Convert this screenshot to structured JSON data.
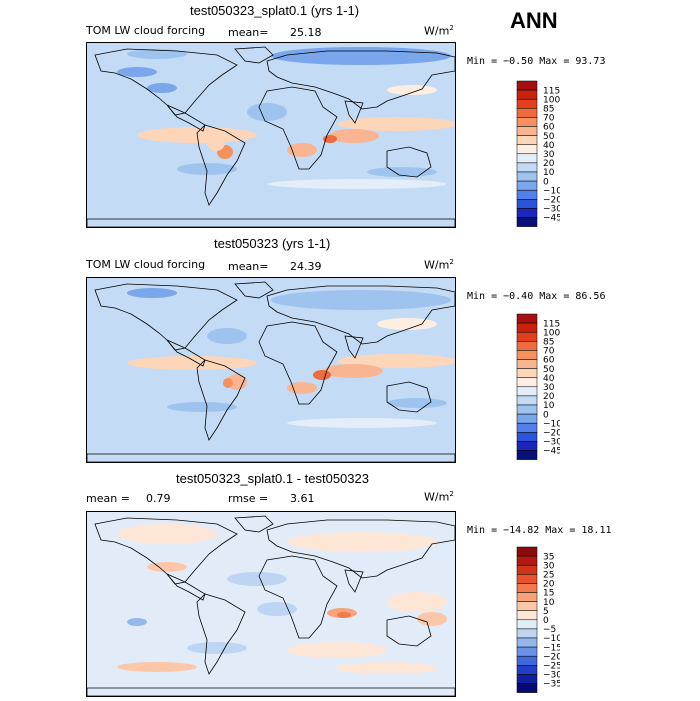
{
  "season": "ANN",
  "units_base": "W/m",
  "units_exp": "2",
  "panels": [
    {
      "title": "test050323_splat0.1 (yrs 1-1)",
      "variable": "TOM LW cloud forcing",
      "stat1_label": "mean=",
      "stat1_value": "25.18",
      "range_text": "Min = −0.50 Max = 93.73",
      "levels": [
        "115",
        "100",
        "85",
        "70",
        "60",
        "50",
        "40",
        "30",
        "20",
        "10",
        "0",
        "−10",
        "−20",
        "−30",
        "−45"
      ],
      "colors": [
        "#a50f0f",
        "#c8210e",
        "#e0401d",
        "#ef6a3d",
        "#f5905f",
        "#f9b591",
        "#fdd6b9",
        "#fdeee1",
        "#e4eefa",
        "#c3dbf4",
        "#9ec3ee",
        "#7aa6ec",
        "#5280e8",
        "#2a55d9",
        "#1a27b8",
        "#08107a"
      ]
    },
    {
      "title": "test050323 (yrs 1-1)",
      "variable": "TOM LW cloud forcing",
      "stat1_label": "mean=",
      "stat1_value": "24.39",
      "range_text": "Min = −0.40 Max = 86.56",
      "levels": [
        "115",
        "100",
        "85",
        "70",
        "60",
        "50",
        "40",
        "30",
        "20",
        "10",
        "0",
        "−10",
        "−20",
        "−30",
        "−45"
      ],
      "colors": [
        "#a50f0f",
        "#c8210e",
        "#e0401d",
        "#ef6a3d",
        "#f5905f",
        "#f9b591",
        "#fdd6b9",
        "#fdeee1",
        "#e4eefa",
        "#c3dbf4",
        "#9ec3ee",
        "#7aa6ec",
        "#5280e8",
        "#2a55d9",
        "#1a27b8",
        "#08107a"
      ]
    },
    {
      "title": "test050323_splat0.1 - test050323",
      "stat1_label": "mean =",
      "stat1_value": "0.79",
      "stat2_label": "rmse =",
      "stat2_value": "3.61",
      "range_text": "Min = −14.82 Max = 18.11",
      "levels": [
        "35",
        "30",
        "25",
        "20",
        "15",
        "10",
        "5",
        "0",
        "−5",
        "−10",
        "−15",
        "−20",
        "−25",
        "−30",
        "−35"
      ],
      "colors": [
        "#8c0a0a",
        "#b01a10",
        "#d0321a",
        "#e6532c",
        "#f27a4e",
        "#f8a27a",
        "#fcc7a8",
        "#fde6d6",
        "#e2ecf8",
        "#bdd5f2",
        "#94b7ec",
        "#6a93e8",
        "#4068de",
        "#2040c8",
        "#1020a0",
        "#050a70"
      ]
    }
  ],
  "chart_data": [
    {
      "type": "heatmap",
      "title": "test050323_splat0.1 (yrs 1-1)",
      "variable": "TOM LW cloud forcing",
      "units": "W/m2",
      "mean": 25.18,
      "min": -0.5,
      "max": 93.73,
      "contour_levels": [
        -45,
        -30,
        -20,
        -10,
        0,
        10,
        20,
        30,
        40,
        50,
        60,
        70,
        85,
        100,
        115
      ]
    },
    {
      "type": "heatmap",
      "title": "test050323 (yrs 1-1)",
      "variable": "TOM LW cloud forcing",
      "units": "W/m2",
      "mean": 24.39,
      "min": -0.4,
      "max": 86.56,
      "contour_levels": [
        -45,
        -30,
        -20,
        -10,
        0,
        10,
        20,
        30,
        40,
        50,
        60,
        70,
        85,
        100,
        115
      ]
    },
    {
      "type": "heatmap",
      "title": "test050323_splat0.1 - test050323",
      "units": "W/m2",
      "mean": 0.79,
      "rmse": 3.61,
      "min": -14.82,
      "max": 18.11,
      "contour_levels": [
        -35,
        -30,
        -25,
        -20,
        -15,
        -10,
        -5,
        0,
        5,
        10,
        15,
        20,
        25,
        30,
        35
      ]
    }
  ]
}
